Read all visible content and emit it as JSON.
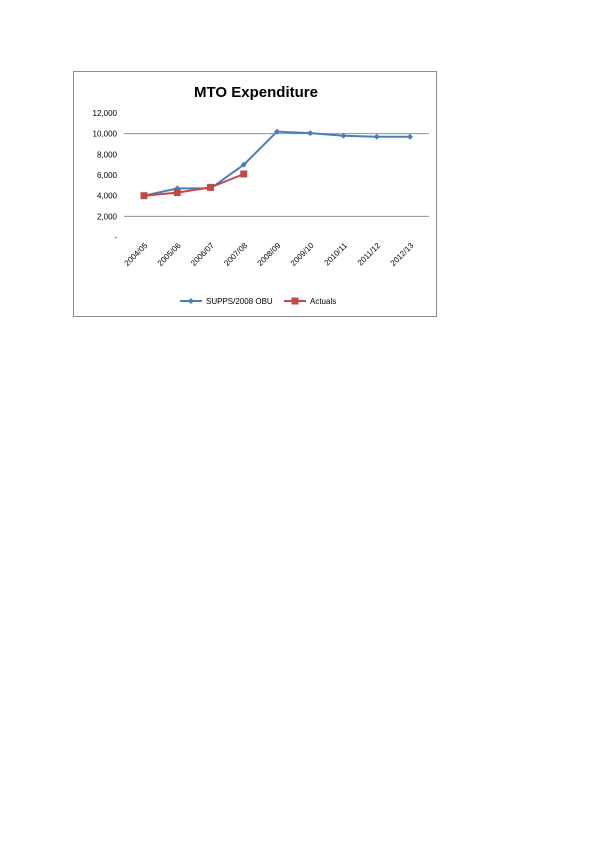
{
  "chart_data": {
    "type": "line",
    "title": "MTO Expenditure",
    "xlabel": "",
    "ylabel": "",
    "categories": [
      "2004/05",
      "2005/06",
      "2006/07",
      "2007/08",
      "2008/09",
      "2009/10",
      "2010/11",
      "2011/12",
      "2012/13"
    ],
    "y_ticks": [
      {
        "value": 0,
        "label": "-"
      },
      {
        "value": 2000,
        "label": "2,000"
      },
      {
        "value": 4000,
        "label": "4,000"
      },
      {
        "value": 6000,
        "label": "6,000"
      },
      {
        "value": 8000,
        "label": "8,000"
      },
      {
        "value": 10000,
        "label": "10,000"
      },
      {
        "value": 12000,
        "label": "12,000"
      }
    ],
    "ylim": [
      0,
      12000
    ],
    "gridlines": [
      2000,
      10000
    ],
    "legend_position": "bottom",
    "series": [
      {
        "name": "SUPPS/2008 OBU",
        "color": "#4a7ebb",
        "marker": "diamond",
        "values": [
          4000,
          4700,
          4700,
          7000,
          10200,
          10050,
          9800,
          9700,
          9700
        ]
      },
      {
        "name": "Actuals",
        "color": "#be4b48",
        "marker": "square",
        "values": [
          4000,
          4300,
          4800,
          6100,
          null,
          null,
          null,
          null,
          null
        ]
      }
    ]
  }
}
